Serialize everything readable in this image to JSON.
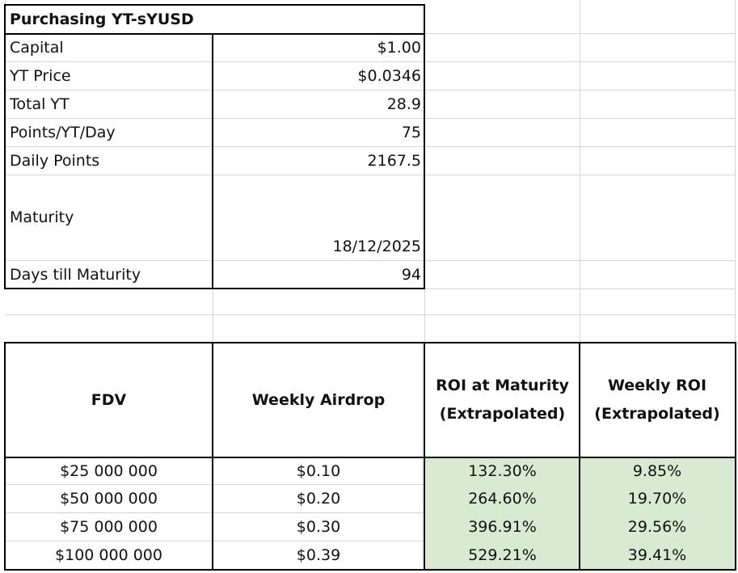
{
  "title": "Purchasing YT-sYUSD",
  "params": [
    {
      "label": "Capital",
      "value": "$1.00"
    },
    {
      "label": "YT Price",
      "value": "$0.0346"
    },
    {
      "label": "Total YT",
      "value": "28.9"
    },
    {
      "label": "Points/YT/Day",
      "value": "75"
    },
    {
      "label": "Daily Points",
      "value": "2167.5"
    },
    {
      "label": "Maturity",
      "value": "18/12/2025"
    },
    {
      "label": "Days till Maturity",
      "value": "94"
    }
  ],
  "table": {
    "headers": [
      "FDV",
      "Weekly Airdrop",
      "ROI at Maturity",
      "(Extrapolated)",
      "Weekly ROI",
      "(Extrapolated)"
    ],
    "rows": [
      [
        "$25 000 000",
        "$0.10",
        "132.30%",
        "9.85%"
      ],
      [
        "$50 000 000",
        "$0.20",
        "264.60%",
        "19.70%"
      ],
      [
        "$75 000 000",
        "$0.30",
        "396.91%",
        "29.56%"
      ],
      [
        "$100 000 000",
        "$0.39",
        "529.21%",
        "39.41%"
      ]
    ],
    "highlight_color": "#d9ead3"
  }
}
